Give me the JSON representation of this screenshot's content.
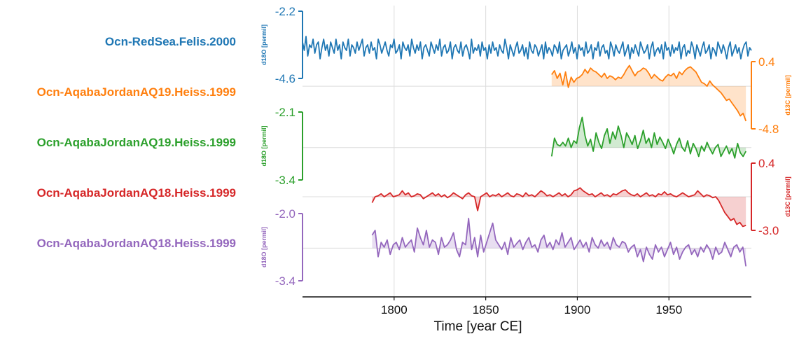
{
  "chart_data": {
    "type": "line",
    "title": "",
    "xlabel": "Time [year CE]",
    "xlim": [
      1750,
      1995
    ],
    "xticks": [
      1800,
      1850,
      1900,
      1950
    ],
    "grid": true,
    "legend": "none",
    "series": [
      {
        "name": "Ocn-RedSea.Felis.2000",
        "ylabel": "d18O [permil]",
        "axis_side": "left",
        "color": "#1f77b4",
        "ylim": [
          -2.2,
          -4.6
        ],
        "yticks": [
          "-2.2",
          "-4.6"
        ],
        "fill": false,
        "x_start": 1750,
        "x_end": 1995,
        "y": [
          -3.3,
          -3.6,
          -3.1,
          -3.8,
          -3.4,
          -3.5,
          -3.2,
          -3.7,
          -3.4,
          -3.3,
          -3.9,
          -3.5,
          -3.2,
          -3.6,
          -3.4,
          -3.8,
          -3.3,
          -3.5,
          -3.7,
          -3.2,
          -3.6,
          -3.4,
          -3.9,
          -3.3,
          -3.5,
          -3.6,
          -3.2,
          -3.8,
          -3.4,
          -3.5,
          -3.7,
          -3.3,
          -3.6,
          -3.4,
          -3.2,
          -3.8,
          -3.5,
          -3.4,
          -3.7,
          -3.3,
          -3.6,
          -3.5,
          -3.9,
          -3.2,
          -3.4,
          -3.7,
          -3.5,
          -3.3,
          -3.6,
          -3.8,
          -3.4,
          -3.5,
          -3.2,
          -3.7,
          -3.6,
          -3.4,
          -3.9,
          -3.3,
          -3.5,
          -3.6,
          -3.4,
          -3.8,
          -3.2,
          -3.5,
          -3.7,
          -3.4,
          -3.6,
          -3.3,
          -3.9,
          -3.5,
          -3.4,
          -3.6,
          -3.8,
          -3.3,
          -3.5,
          -3.7,
          -3.4,
          -3.6,
          -3.2,
          -3.8,
          -3.5,
          -3.4,
          -3.7,
          -3.6,
          -3.3,
          -3.9,
          -3.5,
          -3.4,
          -3.6,
          -3.7,
          -3.3,
          -3.8,
          -3.5,
          -3.4,
          -3.6,
          -3.9,
          -3.2,
          -3.7,
          -3.5,
          -3.6,
          -3.4,
          -3.8,
          -3.3,
          -3.6,
          -3.5,
          -3.9,
          -3.4,
          -3.7,
          -3.3,
          -3.6,
          -3.5,
          -3.8,
          -3.4,
          -3.6,
          -3.7,
          -3.2,
          -3.5,
          -3.9,
          -3.4,
          -3.6,
          -3.8,
          -3.5,
          -3.3,
          -3.7,
          -3.6,
          -3.4,
          -3.8,
          -3.5,
          -3.9,
          -3.3,
          -3.6,
          -3.7,
          -3.4,
          -3.5,
          -3.8,
          -3.6,
          -3.4,
          -3.9,
          -3.3,
          -3.7,
          -3.5,
          -3.6,
          -3.8,
          -3.4,
          -3.5,
          -3.7,
          -3.3,
          -3.9,
          -3.6,
          -3.5,
          -3.4,
          -3.8,
          -3.6,
          -3.3,
          -3.7,
          -3.5,
          -3.9,
          -3.4,
          -3.6,
          -3.5,
          -3.8,
          -3.3,
          -3.7,
          -3.6,
          -3.4,
          -3.9,
          -3.5,
          -3.6,
          -3.3,
          -3.8,
          -3.5,
          -3.4,
          -3.7,
          -3.6,
          -3.9,
          -3.3,
          -3.5,
          -3.8,
          -3.4,
          -3.6,
          -3.7,
          -3.5,
          -3.3,
          -3.8,
          -3.6,
          -3.4,
          -3.9,
          -3.5,
          -3.7,
          -3.4,
          -3.6,
          -3.8,
          -3.3,
          -3.5,
          -3.7,
          -3.6,
          -3.4,
          -3.9,
          -3.5,
          -3.3,
          -3.8,
          -3.6,
          -3.5,
          -3.7,
          -3.4,
          -3.9,
          -3.3,
          -3.6,
          -3.5,
          -3.8,
          -3.4,
          -3.7,
          -3.5,
          -3.6,
          -3.3,
          -3.9,
          -3.5,
          -3.4,
          -3.8,
          -3.6,
          -3.7,
          -3.3,
          -3.5,
          -3.9,
          -3.4,
          -3.6,
          -3.8,
          -3.5,
          -3.3,
          -3.7,
          -3.6,
          -3.4,
          -3.9,
          -3.5,
          -3.6,
          -3.8,
          -3.3,
          -3.5,
          -3.7,
          -3.4,
          -3.6,
          -3.9,
          -3.5,
          -3.3,
          -3.8,
          -3.6,
          -3.4,
          -3.7,
          -3.5,
          -3.9,
          -3.6,
          -3.4,
          -3.3,
          -3.8,
          -3.5,
          -3.6
        ]
      },
      {
        "name": "Ocn-AqabaJordanAQ19.Heiss.1999",
        "ylabel": "d13C [permil]",
        "axis_side": "right",
        "color": "#ff7f0e",
        "ylim": [
          0.4,
          -4.8
        ],
        "yticks": [
          "0.4",
          "-4.8"
        ],
        "fill": true,
        "baseline": -1.5,
        "x_start": 1886,
        "x_end": 1992,
        "y": [
          -0.6,
          -0.3,
          -0.9,
          -0.5,
          -1.4,
          -0.4,
          -1.6,
          -0.8,
          -1.2,
          -0.9,
          -0.8,
          -0.6,
          -0.2,
          -0.5,
          -0.1,
          -0.3,
          -0.4,
          -0.6,
          -0.8,
          -0.5,
          -0.9,
          -0.7,
          -0.8,
          -1.0,
          -0.8,
          -0.9,
          -0.6,
          -0.2,
          0.1,
          -0.3,
          -0.7,
          -0.4,
          -0.3,
          -0.1,
          -0.2,
          -0.5,
          -0.9,
          -0.6,
          -0.8,
          -1.0,
          -1.1,
          -0.8,
          -0.6,
          -0.7,
          -0.5,
          -0.9,
          -0.4,
          -0.6,
          -0.3,
          -0.1,
          0.0,
          -0.2,
          -0.4,
          -0.8,
          -1.2,
          -1.3,
          -1.5,
          -1.1,
          -1.4,
          -1.6,
          -1.8,
          -2.0,
          -2.3,
          -2.6,
          -2.5,
          -2.8,
          -3.1,
          -3.4,
          -3.8,
          -3.6,
          -4.2
        ]
      },
      {
        "name": "Ocn-AqabaJordanAQ19.Heiss.1999",
        "ylabel": "d18O [permil]",
        "axis_side": "left",
        "color": "#2ca02c",
        "ylim": [
          -2.1,
          -3.4
        ],
        "yticks": [
          "-2.1",
          "-3.4"
        ],
        "fill": true,
        "baseline": -2.78,
        "x_start": 1886,
        "x_end": 1992,
        "y": [
          -2.95,
          -2.6,
          -2.72,
          -2.75,
          -2.68,
          -2.75,
          -2.6,
          -2.78,
          -2.65,
          -2.7,
          -2.4,
          -2.2,
          -2.55,
          -2.75,
          -2.62,
          -2.85,
          -2.5,
          -2.68,
          -2.8,
          -2.55,
          -2.42,
          -2.7,
          -2.48,
          -2.62,
          -2.37,
          -2.55,
          -2.78,
          -2.5,
          -2.6,
          -2.72,
          -2.55,
          -2.8,
          -2.65,
          -2.45,
          -2.7,
          -2.6,
          -2.78,
          -2.5,
          -2.72,
          -2.58,
          -2.68,
          -2.8,
          -2.62,
          -2.75,
          -2.9,
          -2.72,
          -2.6,
          -2.78,
          -2.85,
          -2.65,
          -2.9,
          -2.7,
          -2.8,
          -2.95,
          -2.75,
          -2.85,
          -2.68,
          -2.8,
          -2.9,
          -2.78,
          -2.72,
          -2.95,
          -2.85,
          -2.75,
          -2.9,
          -2.8,
          -2.98,
          -2.7,
          -2.88,
          -2.95,
          -2.85
        ]
      },
      {
        "name": "Ocn-AqabaJordanAQ18.Heiss.1999",
        "ylabel": "d13C [permil]",
        "axis_side": "right",
        "color": "#d62728",
        "ylim": [
          0.4,
          -3.0
        ],
        "yticks": [
          "0.4",
          "-3.0"
        ],
        "fill": true,
        "baseline": -1.3,
        "x_start": 1788,
        "x_end": 1992,
        "y": [
          -1.6,
          -1.3,
          -1.25,
          -1.15,
          -1.3,
          -1.2,
          -1.1,
          -1.3,
          -1.25,
          -1.2,
          -1.0,
          -1.2,
          -1.1,
          -1.3,
          -1.25,
          -1.15,
          -1.2,
          -1.4,
          -1.3,
          -1.2,
          -1.1,
          -1.25,
          -1.15,
          -1.3,
          -1.2,
          -1.35,
          -1.25,
          -1.1,
          -1.2,
          -1.3,
          -1.4,
          -1.2,
          -1.1,
          -1.25,
          -1.3,
          -2.0,
          -1.3,
          -1.2,
          -1.1,
          -1.3,
          -1.2,
          -1.25,
          -1.15,
          -1.3,
          -1.2,
          -1.1,
          -1.25,
          -1.3,
          -1.15,
          -1.2,
          -1.3,
          -1.1,
          -1.25,
          -1.2,
          -1.3,
          -1.15,
          -1.0,
          -1.1,
          -1.25,
          -1.2,
          -1.3,
          -1.2,
          -1.1,
          -1.25,
          -1.15,
          -1.3,
          -1.2,
          -1.0,
          -0.95,
          -0.85,
          -1.0,
          -1.1,
          -1.2,
          -1.15,
          -1.3,
          -1.2,
          -1.1,
          -1.25,
          -1.2,
          -1.3,
          -1.15,
          -1.2,
          -1.1,
          -1.0,
          -0.95,
          -1.1,
          -1.2,
          -1.25,
          -1.15,
          -1.3,
          -1.2,
          -1.1,
          -1.25,
          -1.2,
          -1.3,
          -1.15,
          -1.2,
          -1.05,
          -1.2,
          -1.15,
          -1.25,
          -1.3,
          -1.2,
          -1.1,
          -1.2,
          -1.3,
          -1.25,
          -1.2,
          -1.0,
          -1.15,
          -1.3,
          -1.2,
          -1.25,
          -1.35,
          -1.3,
          -1.5,
          -1.8,
          -2.1,
          -2.3,
          -2.5,
          -2.4,
          -2.7,
          -2.6,
          -2.8,
          -2.75
        ]
      },
      {
        "name": "Ocn-AqabaJordanAQ18.Heiss.1999",
        "ylabel": "d18O [permil]",
        "axis_side": "left",
        "color": "#9467bd",
        "ylim": [
          -2.0,
          -3.4
        ],
        "yticks": [
          "-2.0",
          "-3.4"
        ],
        "fill": true,
        "baseline": -2.72,
        "x_start": 1788,
        "x_end": 1992,
        "y": [
          -2.45,
          -2.35,
          -2.9,
          -2.6,
          -2.7,
          -2.55,
          -2.85,
          -2.65,
          -2.6,
          -2.75,
          -2.5,
          -2.7,
          -2.62,
          -2.55,
          -2.8,
          -2.3,
          -2.5,
          -2.65,
          -2.35,
          -2.7,
          -2.55,
          -2.6,
          -2.85,
          -2.5,
          -2.7,
          -2.65,
          -2.55,
          -2.4,
          -2.75,
          -2.9,
          -2.6,
          -2.65,
          -2.1,
          -2.75,
          -2.5,
          -2.9,
          -2.45,
          -2.8,
          -2.6,
          -2.4,
          -2.2,
          -2.55,
          -2.65,
          -2.75,
          -2.6,
          -2.85,
          -2.5,
          -2.7,
          -2.62,
          -2.55,
          -2.75,
          -2.6,
          -2.5,
          -2.7,
          -2.65,
          -2.8,
          -2.55,
          -2.45,
          -2.7,
          -2.6,
          -2.75,
          -2.55,
          -2.65,
          -2.4,
          -2.7,
          -2.6,
          -2.5,
          -2.75,
          -2.65,
          -2.55,
          -2.7,
          -2.6,
          -2.8,
          -2.5,
          -2.65,
          -2.72,
          -2.55,
          -2.68,
          -2.6,
          -2.75,
          -2.5,
          -2.65,
          -2.7,
          -2.58,
          -2.62,
          -2.8,
          -2.7,
          -2.65,
          -2.9,
          -2.75,
          -3.0,
          -2.7,
          -2.85,
          -2.95,
          -2.65,
          -2.8,
          -2.7,
          -2.9,
          -2.75,
          -2.6,
          -2.85,
          -2.7,
          -2.95,
          -2.8,
          -2.7,
          -2.65,
          -2.85,
          -2.75,
          -2.9,
          -2.7,
          -2.8,
          -2.65,
          -2.75,
          -2.95,
          -2.7,
          -2.85,
          -2.8,
          -2.6,
          -2.75,
          -2.9,
          -2.7,
          -2.65,
          -2.8,
          -2.7,
          -3.1
        ]
      }
    ]
  }
}
